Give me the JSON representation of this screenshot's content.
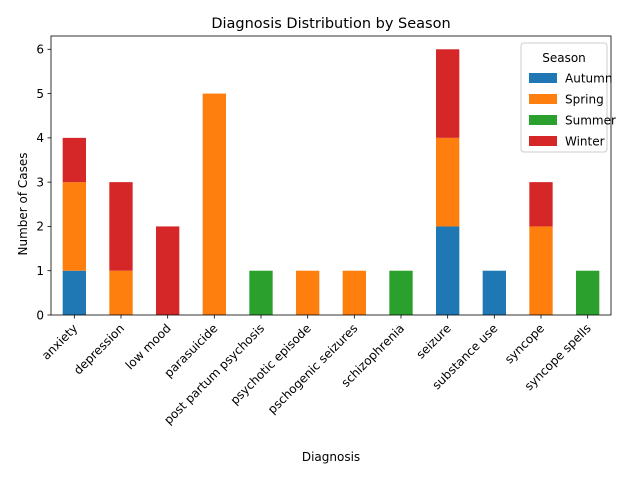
{
  "chart_data": {
    "type": "bar",
    "stacked": true,
    "title": "Diagnosis Distribution by Season",
    "xlabel": "Diagnosis",
    "ylabel": "Number of Cases",
    "ylim": [
      0,
      6.3
    ],
    "yticks": [
      0,
      1,
      2,
      3,
      4,
      5,
      6
    ],
    "grid": false,
    "categories": [
      "anxiety",
      "depression",
      "low mood",
      "parasuicide",
      "post partum psychosis",
      "psychotic episode",
      "pschogenic seizures",
      "schizophrenia",
      "seizure",
      "substance use",
      "syncope",
      "syncope spells"
    ],
    "series": [
      {
        "name": "Autumn",
        "color": "#1f77b4",
        "values": [
          1,
          0,
          0,
          0,
          0,
          0,
          0,
          0,
          2,
          1,
          0,
          0
        ]
      },
      {
        "name": "Spring",
        "color": "#ff7f0e",
        "values": [
          2,
          1,
          0,
          5,
          0,
          1,
          1,
          0,
          2,
          0,
          2,
          0
        ]
      },
      {
        "name": "Summer",
        "color": "#2ca02c",
        "values": [
          0,
          0,
          0,
          0,
          1,
          0,
          0,
          1,
          0,
          0,
          0,
          1
        ]
      },
      {
        "name": "Winter",
        "color": "#d62728",
        "values": [
          1,
          2,
          2,
          0,
          0,
          0,
          0,
          0,
          2,
          0,
          1,
          0
        ]
      }
    ],
    "legend": {
      "title": "Season",
      "placement": "top-right"
    }
  }
}
